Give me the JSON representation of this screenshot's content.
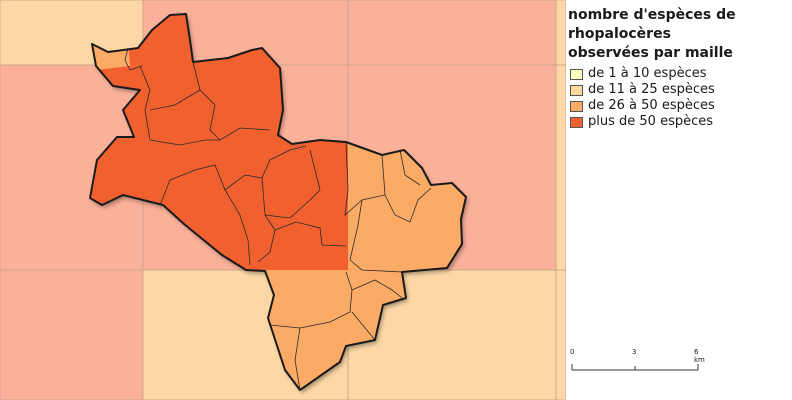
{
  "legend": {
    "title": "nombre d'espèces de\nrhopalocères\nobservées par maille",
    "items": [
      {
        "label": "de 1 à 10 espèces",
        "color": "#ffffc0"
      },
      {
        "label": "de 11 à 25 espèces",
        "color": "#fdd89a"
      },
      {
        "label": "de 26 à 50 espèces",
        "color": "#fcab66"
      },
      {
        "label": "plus de 50 espèces",
        "color": "#f1602f"
      }
    ]
  },
  "scale": {
    "ticks": [
      "0",
      "3",
      "6 km"
    ]
  },
  "grid_cells": [
    {
      "row": 0,
      "col": 0,
      "class": 1
    },
    {
      "row": 0,
      "col": 1,
      "class": 3
    },
    {
      "row": 0,
      "col": 2,
      "class": 3
    },
    {
      "row": 0,
      "col": 3,
      "class": 2
    },
    {
      "row": 1,
      "col": 0,
      "class": 3
    },
    {
      "row": 1,
      "col": 1,
      "class": 3
    },
    {
      "row": 1,
      "col": 2,
      "class": 3
    },
    {
      "row": 1,
      "col": 3,
      "class": 1
    },
    {
      "row": 2,
      "col": 0,
      "class": 3
    },
    {
      "row": 2,
      "col": 1,
      "class": 1
    },
    {
      "row": 2,
      "col": 2,
      "class": 1
    },
    {
      "row": 2,
      "col": 3,
      "class": 1
    }
  ],
  "communes": [
    {
      "class": 4
    },
    {
      "class": 4
    },
    {
      "class": 4
    },
    {
      "class": 4
    },
    {
      "class": 4
    },
    {
      "class": 3
    },
    {
      "class": 3
    },
    {
      "class": 3
    }
  ]
}
